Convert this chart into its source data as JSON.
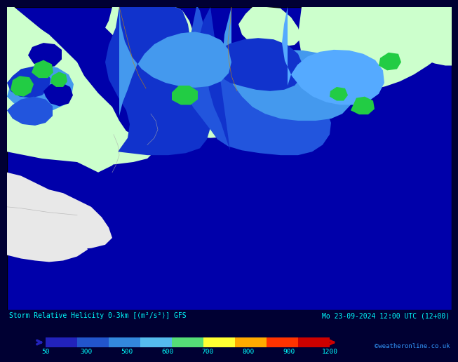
{
  "title_left": "Storm Relative Helicity 0-3km [⟨m²/s²⟩] GFS",
  "title_right": "Mo 23-09-2024 12:00 UTC (12+00)",
  "credit": "©weatheronline.co.uk",
  "colorbar_labels": [
    "50",
    "300",
    "500",
    "600",
    "700",
    "800",
    "900",
    "1200"
  ],
  "colorbar_colors": [
    "#2222bb",
    "#2266dd",
    "#3399ee",
    "#55ccff",
    "#66dd88",
    "#ffff33",
    "#ffaa00",
    "#ff3300",
    "#cc0000"
  ],
  "bar_bg": "#000033",
  "text_color": "#00ffff",
  "credit_color": "#3399ff",
  "map_bg": "#0000aa",
  "light_green": "#ccffcc",
  "white_land": "#e8e8e8",
  "dark_blue": "#0000aa",
  "mid_blue1": "#1133cc",
  "mid_blue2": "#2255dd",
  "light_blue": "#4499ee",
  "lighter_blue": "#55aaff",
  "green_spot": "#22cc44",
  "border_color_gray": "#aaaaaa",
  "border_color_orange": "#cc8800"
}
